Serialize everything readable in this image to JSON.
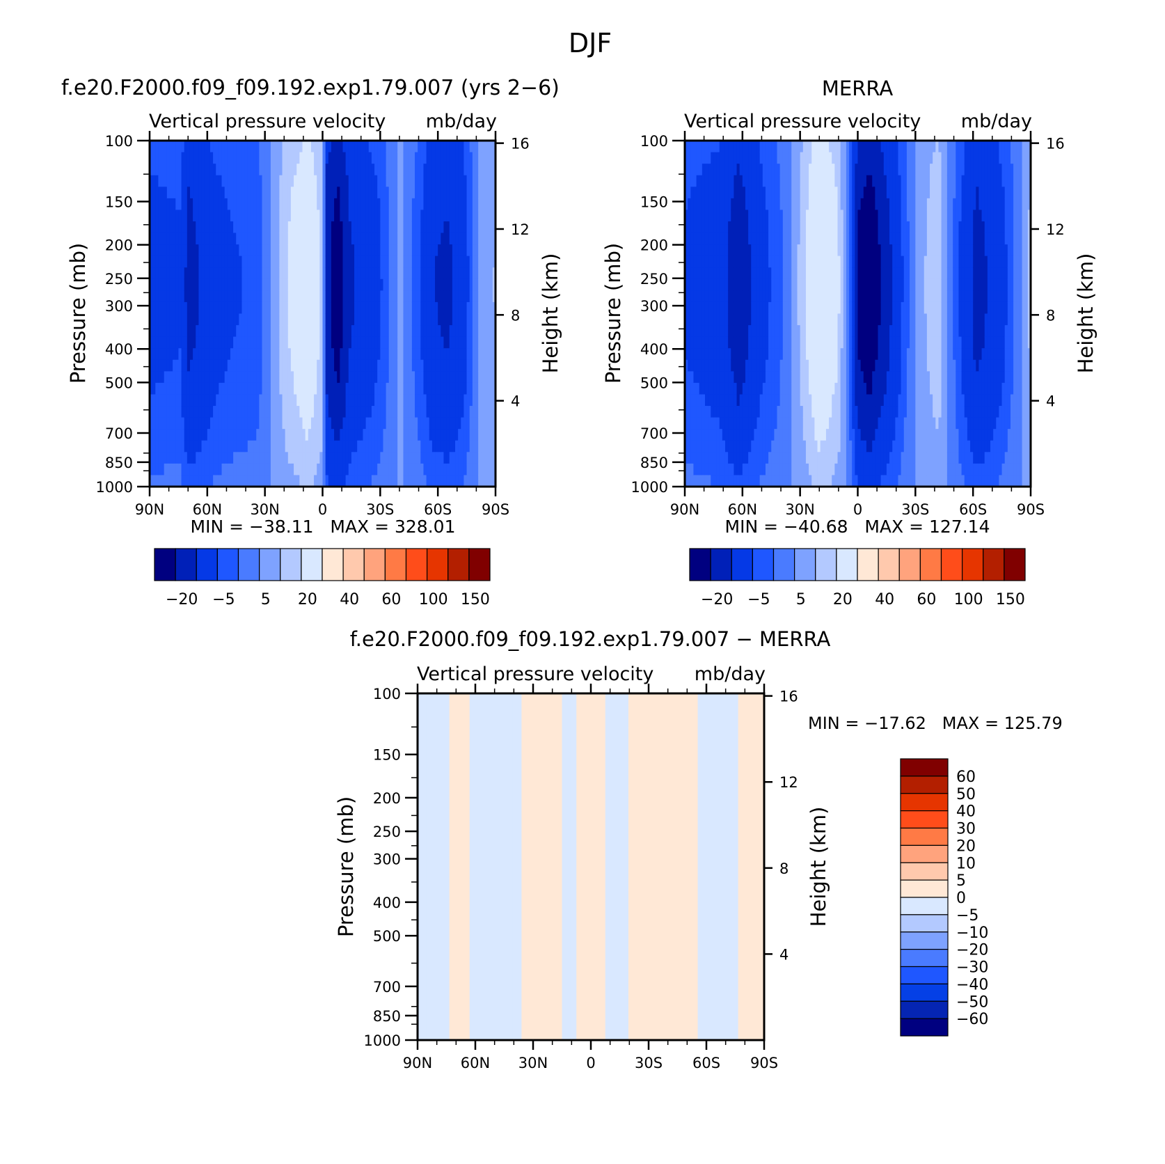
{
  "figure_title": "DJF",
  "colors": {
    "model_levels": [
      "#000080",
      "#0020b8",
      "#0539e6",
      "#1f57ff",
      "#4a7bff",
      "#7ea2ff",
      "#b3c9ff",
      "#d9e8ff",
      "#ffe8d6",
      "#ffc9ad",
      "#ffa37d",
      "#ff7a45",
      "#ff4d1a",
      "#e63500",
      "#b31f00",
      "#800000"
    ],
    "diff_levels": [
      "#000080",
      "#0525b3",
      "#0540e6",
      "#1f57ff",
      "#4a7bff",
      "#7ea2ff",
      "#b3c9ff",
      "#d9e8ff",
      "#ffe8d6",
      "#ffc9ad",
      "#ffa37d",
      "#ff7a45",
      "#ff4d1a",
      "#e63500",
      "#b31f00",
      "#800000"
    ]
  },
  "chart_data": [
    {
      "type": "heatmap",
      "title": "f.e20.F2000.f09_f09.192.exp1.79.007 (yrs 2−6)",
      "subtitle_left": "Vertical pressure velocity",
      "subtitle_right": "mb/day",
      "ylabel": "Pressure (mb)",
      "ylabel_right": "Height (km)",
      "x_ticks": [
        "90N",
        "60N",
        "30N",
        "0",
        "30S",
        "60S",
        "90S"
      ],
      "y_ticks": [
        100,
        150,
        200,
        250,
        300,
        400,
        500,
        700,
        850,
        1000
      ],
      "y_right_ticks": [
        16,
        12,
        8,
        4
      ],
      "ylim": [
        1000,
        100
      ],
      "y_scale": "log",
      "min_max_text": "MIN = −38.11   MAX = 328.01",
      "colorbar_orientation": "horizontal",
      "colorbar_tick_labels": [
        "−20",
        "−5",
        "5",
        "20",
        "40",
        "60",
        "100",
        "150"
      ],
      "x_lat": [
        90,
        60,
        30,
        0,
        -30,
        -60,
        -90
      ],
      "wave_x": [
        90,
        74,
        70,
        55,
        48,
        34,
        20,
        8,
        0,
        -2,
        -8,
        -14,
        -30,
        -40,
        -50,
        -58,
        -65,
        -73,
        -81,
        -90
      ],
      "wave_v": [
        -12,
        -10,
        -22,
        -12,
        -10,
        -8,
        8,
        16,
        8,
        -24,
        -34,
        -20,
        -10,
        2,
        -8,
        -18,
        -20,
        -14,
        0,
        5
      ]
    },
    {
      "type": "heatmap",
      "title": "MERRA",
      "subtitle_left": "Vertical pressure velocity",
      "subtitle_right": "mb/day",
      "ylabel": "Pressure (mb)",
      "ylabel_right": "Height (km)",
      "x_ticks": [
        "90N",
        "60N",
        "30N",
        "0",
        "30S",
        "60S",
        "90S"
      ],
      "y_ticks": [
        100,
        150,
        200,
        250,
        300,
        400,
        500,
        700,
        850,
        1000
      ],
      "y_right_ticks": [
        16,
        12,
        8,
        4
      ],
      "ylim": [
        1000,
        100
      ],
      "y_scale": "log",
      "min_max_text": "MIN = −40.68   MAX = 127.14",
      "colorbar_orientation": "horizontal",
      "colorbar_tick_labels": [
        "−20",
        "−5",
        "5",
        "20",
        "40",
        "60",
        "100",
        "150"
      ],
      "x_lat": [
        90,
        60,
        30,
        0,
        -30,
        -60,
        -90
      ],
      "wave_x": [
        90,
        72,
        62,
        50,
        38,
        28,
        20,
        10,
        3,
        0,
        -6,
        -14,
        -24,
        -32,
        -42,
        -52,
        -62,
        -73,
        -84,
        -90
      ],
      "wave_v": [
        -10,
        -14,
        -25,
        -12,
        -4,
        8,
        18,
        10,
        -10,
        -30,
        -36,
        -24,
        -8,
        3,
        8,
        -8,
        -22,
        -14,
        -2,
        6
      ]
    },
    {
      "type": "heatmap",
      "title": "f.e20.F2000.f09_f09.192.exp1.79.007 − MERRA",
      "subtitle_left": "Vertical pressure velocity",
      "subtitle_right": "mb/day",
      "ylabel": "Pressure (mb)",
      "ylabel_right": "Height (km)",
      "x_ticks": [
        "90N",
        "60N",
        "30N",
        "0",
        "30S",
        "60S",
        "90S"
      ],
      "y_ticks": [
        100,
        150,
        200,
        250,
        300,
        400,
        500,
        700,
        850,
        1000
      ],
      "y_right_ticks": [
        16,
        12,
        8,
        4
      ],
      "ylim": [
        1000,
        100
      ],
      "y_scale": "log",
      "min_max_text": "MIN = −17.62   MAX = 125.79",
      "colorbar_orientation": "vertical",
      "colorbar_tick_labels": [
        "60",
        "50",
        "40",
        "30",
        "20",
        "10",
        "5",
        "0",
        "−5",
        "−10",
        "−20",
        "−30",
        "−40",
        "−50",
        "−60"
      ],
      "x_lat": [
        90,
        60,
        30,
        0,
        -30,
        -60,
        -90
      ],
      "wave_x": [
        90,
        78,
        70,
        56,
        42,
        30,
        20,
        10,
        2,
        -2,
        -12,
        -26,
        -38,
        -50,
        -60,
        -72,
        -82,
        -90
      ],
      "wave_v": [
        -2,
        -2,
        2,
        -2,
        -2,
        2,
        2,
        -2,
        3,
        2,
        -2,
        2,
        3,
        2,
        -2,
        -2,
        2,
        3
      ]
    }
  ]
}
